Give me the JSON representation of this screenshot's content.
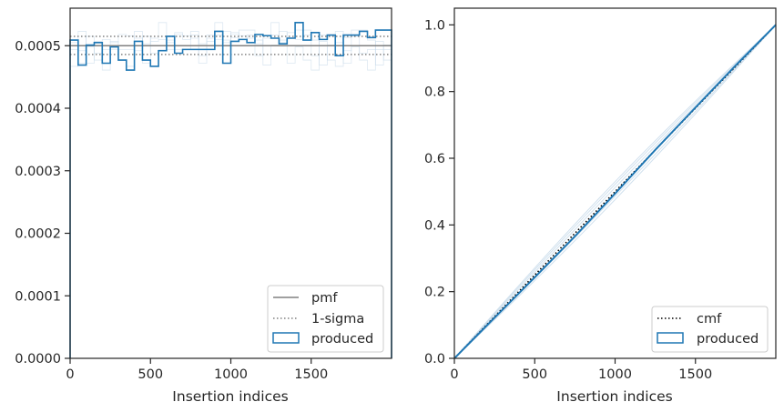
{
  "colors": {
    "produced": "#1f77b4",
    "pmf": "#808080",
    "sigma": "#808080",
    "cmf": "#000000",
    "faint_lines": "#c6d9ea",
    "axes": "#262626"
  },
  "chart_data": [
    {
      "type": "histogram",
      "xlabel": "Insertion indices",
      "ylabel": "",
      "xlim": [
        0,
        2000
      ],
      "ylim": [
        0,
        0.00056
      ],
      "xticks": [
        0,
        500,
        1000,
        1500
      ],
      "yticks": [
        0.0,
        0.0001,
        0.0002,
        0.0003,
        0.0004,
        0.0005
      ],
      "ytick_labels": [
        "0.0000",
        "0.0001",
        "0.0002",
        "0.0003",
        "0.0004",
        "0.0005"
      ],
      "grid": false,
      "legend_position": "lower-right",
      "legend": [
        "pmf",
        "1-sigma",
        "produced"
      ],
      "pmf": 0.0005,
      "sigma_band": [
        0.000486,
        0.000515
      ],
      "bin_width": 50,
      "bin_starts": [
        0,
        50,
        100,
        150,
        200,
        250,
        300,
        350,
        400,
        450,
        500,
        550,
        600,
        650,
        700,
        750,
        800,
        850,
        900,
        950,
        1000,
        1050,
        1100,
        1150,
        1200,
        1250,
        1300,
        1350,
        1400,
        1450,
        1500,
        1550,
        1600,
        1650,
        1700,
        1750,
        1800,
        1850,
        1900,
        1950
      ],
      "produced": [
        0.000509,
        0.000469,
        0.000501,
        0.000505,
        0.000472,
        0.000498,
        0.000477,
        0.000461,
        0.000507,
        0.000477,
        0.000467,
        0.000492,
        0.000515,
        0.000488,
        0.000494,
        0.000494,
        0.000494,
        0.000494,
        0.000523,
        0.000472,
        0.000507,
        0.00051,
        0.000505,
        0.000518,
        0.000516,
        0.000512,
        0.000503,
        0.000512,
        0.000537,
        0.000509,
        0.000521,
        0.00051,
        0.000517,
        0.000484,
        0.000517,
        0.000517,
        0.000523,
        0.000513,
        0.000525,
        0.000525
      ]
    },
    {
      "type": "line",
      "xlabel": "Insertion indices",
      "ylabel": "",
      "xlim": [
        0,
        2000
      ],
      "ylim": [
        0,
        1.05
      ],
      "xticks": [
        0,
        500,
        1000,
        1500
      ],
      "yticks": [
        0.0,
        0.2,
        0.4,
        0.6,
        0.8,
        1.0
      ],
      "ytick_labels": [
        "0.0",
        "0.2",
        "0.4",
        "0.6",
        "0.8",
        "1.0"
      ],
      "grid": false,
      "legend_position": "lower-right",
      "legend": [
        "cmf",
        "produced"
      ],
      "series": [
        {
          "name": "cmf",
          "style": "dotted",
          "x": [
            0,
            2000
          ],
          "y": [
            0.0,
            1.0
          ]
        },
        {
          "name": "produced",
          "style": "solid",
          "x": [
            0,
            250,
            500,
            750,
            1000,
            1250,
            1500,
            1750,
            2000
          ],
          "y": [
            0.0,
            0.122,
            0.243,
            0.366,
            0.494,
            0.625,
            0.752,
            0.878,
            1.0
          ]
        }
      ]
    }
  ]
}
